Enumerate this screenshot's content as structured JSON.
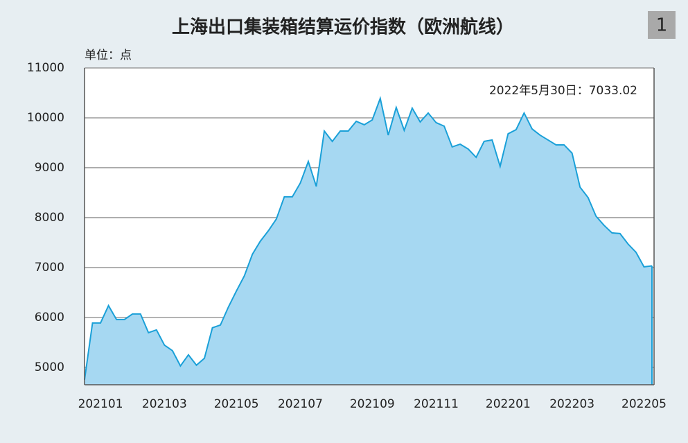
{
  "badge": "1",
  "chart_data": {
    "type": "area",
    "title": "上海出口集装箱结算运价指数（欧洲航线）",
    "unit_label": "单位：点",
    "annotation": "2022年5月30日：7033.02",
    "categories": [
      null,
      null,
      "202101",
      null,
      null,
      null,
      null,
      null,
      null,
      null,
      "202103",
      null,
      null,
      null,
      null,
      null,
      null,
      null,
      null,
      "202105",
      null,
      null,
      null,
      null,
      null,
      null,
      null,
      "202107",
      null,
      null,
      null,
      null,
      null,
      null,
      null,
      null,
      "202109",
      null,
      null,
      null,
      null,
      null,
      null,
      null,
      "202111",
      null,
      null,
      null,
      null,
      null,
      null,
      null,
      null,
      "202201",
      null,
      null,
      null,
      null,
      null,
      null,
      null,
      "202203",
      null,
      null,
      null,
      null,
      null,
      null,
      null,
      null,
      "202205",
      null
    ],
    "values": [
      4750,
      5889,
      5889,
      6236,
      5958,
      5958,
      6069,
      6069,
      5694,
      5750,
      5444,
      5333,
      5028,
      5250,
      5042,
      5181,
      5792,
      5847,
      6208,
      6528,
      6833,
      7264,
      7528,
      7736,
      7972,
      8417,
      8417,
      8694,
      9125,
      8625,
      9736,
      9528,
      9736,
      9736,
      9931,
      9861,
      9958,
      10389,
      9653,
      10208,
      9750,
      10194,
      9917,
      10097,
      9903,
      9833,
      9417,
      9472,
      9375,
      9208,
      9528,
      9556,
      9028,
      9681,
      9764,
      10097,
      9778,
      9653,
      9556,
      9458,
      9458,
      9292,
      8611,
      8403,
      8028,
      7847,
      7694,
      7681,
      7472,
      7306,
      7014,
      7033.02
    ],
    "color": "#1aa0d8",
    "fill": "#a6d8f2",
    "ylim": [
      4650,
      11000
    ],
    "yticks": [
      5000,
      6000,
      7000,
      8000,
      9000,
      10000,
      11000
    ],
    "grid": true
  }
}
